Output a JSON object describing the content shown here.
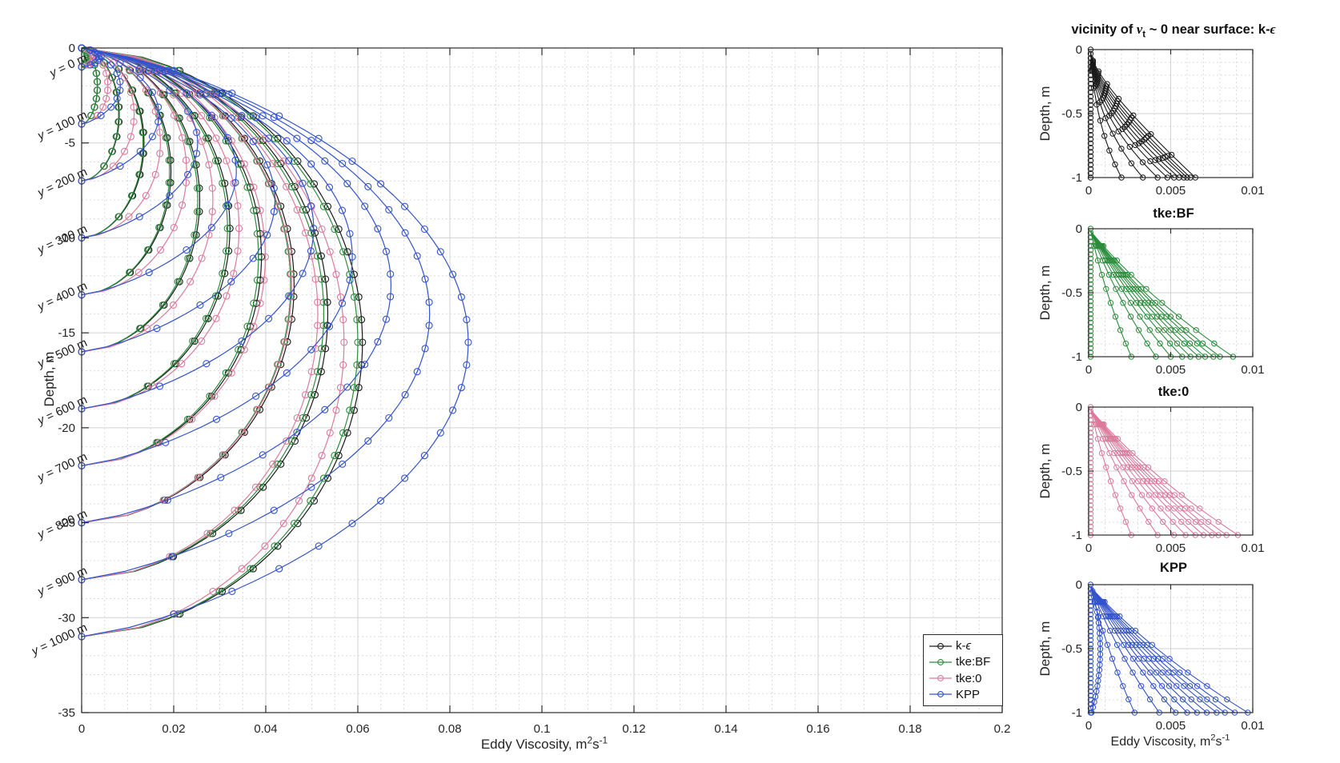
{
  "figure": {
    "background": "#ffffff",
    "text_color": "#252525",
    "grid_minor_color": "#dcdcdc",
    "grid_major_color": "#d2d2d2",
    "axis_color": "#2b2b2b"
  },
  "chart_data": [
    {
      "id": "main",
      "type": "line",
      "title": "",
      "xlabel": "Eddy Viscosity, m^{2}s^{-1}",
      "ylabel": "Depth, m",
      "xlim": [
        0,
        0.2
      ],
      "ylim": [
        -35,
        0
      ],
      "xticks": [
        0,
        0.02,
        0.04,
        0.06,
        0.08,
        0.1,
        0.12,
        0.14,
        0.16,
        0.18,
        0.2
      ],
      "xtick_labels": [
        "0",
        "0.02",
        "0.04",
        "0.06",
        "0.08",
        "0.1",
        "0.12",
        "0.14",
        "0.16",
        "0.18",
        "0.2"
      ],
      "yticks": [
        0,
        -5,
        -10,
        -15,
        -20,
        -25,
        -30,
        -35
      ],
      "ytick_labels": [
        "0",
        "-5",
        "-10",
        "-15",
        "-20",
        "-25",
        "-30",
        "-35"
      ],
      "x_minor_step": 0.005,
      "y_minor_step": 1,
      "grid": true,
      "marker": "o",
      "legend_position": "bottom-right",
      "profiles": {
        "labels": [
          "y = 0 m",
          "y = 100 m",
          "y = 200 m",
          "y = 300 m",
          "y = 400 m",
          "y = 500 m",
          "y = 600 m",
          "y = 700 m",
          "y = 800 m",
          "y = 900 m",
          "y = 1000 m"
        ],
        "bottom_depth_m": [
          1,
          4,
          7,
          10,
          13,
          16,
          19,
          22,
          25,
          28,
          31
        ]
      },
      "series": [
        {
          "name": "k-ϵ",
          "color": "#1a1a1a",
          "peak_viscosity_max": 0.061,
          "peak_exponent": 1.25,
          "profile_shape": "flat-top"
        },
        {
          "name": "tke:BF",
          "color": "#2c8c3c",
          "peak_viscosity_max": 0.06,
          "peak_exponent": 1.25,
          "profile_shape": "flat-top"
        },
        {
          "name": "tke:0",
          "color": "#db7b9c",
          "peak_viscosity_max": 0.057,
          "peak_exponent": 1.0,
          "profile_shape": "flat-top"
        },
        {
          "name": "KPP",
          "color": "#3353cd",
          "peak_viscosity_max": 0.084,
          "peak_exponent": 1.0,
          "profile_shape": "parabola"
        }
      ]
    },
    {
      "id": "surface-keps",
      "type": "line",
      "title": "vicinity of ν_{t} ~ 0 near surface: k-ϵ",
      "ylabel": "Depth, m",
      "color": "#1a1a1a",
      "xlim": [
        0,
        0.01
      ],
      "ylim": [
        -1,
        0
      ],
      "xtick_labels": [
        "0",
        "0.005",
        "0.01"
      ],
      "ytick_labels": [
        "0",
        "-0.5",
        "-1"
      ],
      "line_style": "knee",
      "marker_column_at_zero": true,
      "x_at_depth_1m": [
        0.002,
        0.0033,
        0.0042,
        0.0048,
        0.0052,
        0.0055,
        0.0058,
        0.006,
        0.0062,
        0.0065
      ]
    },
    {
      "id": "surface-tkebf",
      "type": "line",
      "title": "tke:BF",
      "ylabel": "Depth, m",
      "color": "#2c8c3c",
      "xlim": [
        0,
        0.01
      ],
      "ylim": [
        -1,
        0
      ],
      "xtick_labels": [
        "0",
        "0.005",
        "0.01"
      ],
      "ytick_labels": [
        "0",
        "-0.5",
        "-1"
      ],
      "line_style": "fan",
      "marker_column_at_zero": true,
      "x_at_depth_1m": [
        0.0026,
        0.0041,
        0.005,
        0.0057,
        0.0062,
        0.0067,
        0.0071,
        0.0076,
        0.008,
        0.0088
      ]
    },
    {
      "id": "surface-tke0",
      "type": "line",
      "title": "tke:0",
      "ylabel": "Depth, m",
      "color": "#db7b9c",
      "xlim": [
        0,
        0.01
      ],
      "ylim": [
        -1,
        0
      ],
      "xtick_labels": [
        "0",
        "0.005",
        "0.01"
      ],
      "ytick_labels": [
        "0",
        "-0.5",
        "-1"
      ],
      "line_style": "fan",
      "marker_column_at_zero": true,
      "x_at_depth_1m": [
        0.0026,
        0.0042,
        0.0052,
        0.0059,
        0.0065,
        0.007,
        0.0075,
        0.0079,
        0.0084,
        0.0091
      ]
    },
    {
      "id": "surface-kpp",
      "type": "line",
      "title": "KPP",
      "xlabel": "Eddy Viscosity, m^{2}s^{-1}",
      "ylabel": "Depth, m",
      "color": "#3353cd",
      "xlim": [
        0,
        0.01
      ],
      "ylim": [
        -1,
        0
      ],
      "xtick_labels": [
        "0",
        "0.005",
        "0.01"
      ],
      "ytick_labels": [
        "0",
        "-0.5",
        "-1"
      ],
      "line_style": "fan-bulge",
      "marker_column_at_zero": true,
      "x_at_depth_1m": [
        0.0028,
        0.0043,
        0.0053,
        0.006,
        0.0066,
        0.0072,
        0.0078,
        0.0083,
        0.0089,
        0.0097
      ]
    }
  ]
}
